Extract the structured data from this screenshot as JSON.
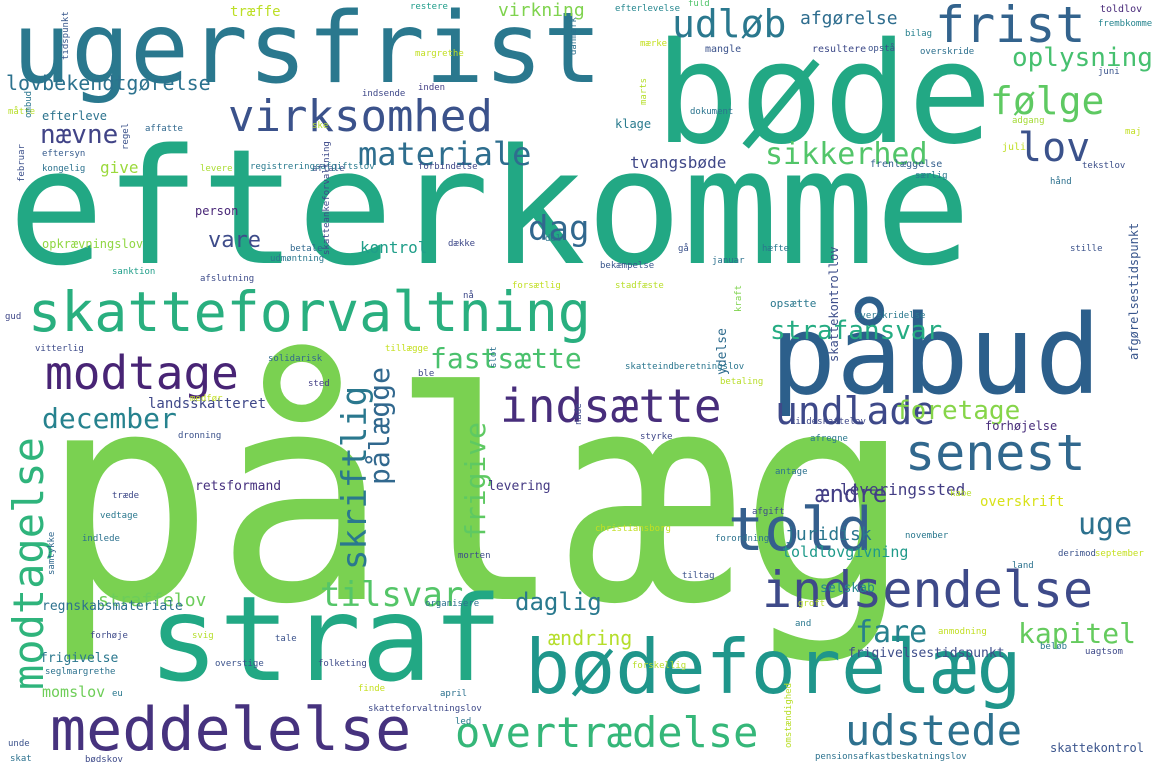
{
  "words": [
    {
      "text": "pålæg",
      "color": "#7ad151"
    },
    {
      "text": "efterkomme",
      "color": "#22a884"
    },
    {
      "text": "ugersfrist",
      "color": "#2a788e"
    },
    {
      "text": "bøde",
      "color": "#22a884"
    },
    {
      "text": "påbud",
      "color": "#2c5f8b"
    },
    {
      "text": "straf",
      "color": "#22a884"
    },
    {
      "text": "skatteforvaltning",
      "color": "#29af7f"
    },
    {
      "text": "bødeforelæg",
      "color": "#1f968b"
    },
    {
      "text": "meddelelse",
      "color": "#46327e"
    },
    {
      "text": "virksomhed",
      "color": "#3b528b"
    },
    {
      "text": "indsætte",
      "color": "#472d7b"
    },
    {
      "text": "modtage",
      "color": "#482475"
    },
    {
      "text": "indsendelse",
      "color": "#3e4a89"
    },
    {
      "text": "told",
      "color": "#355f8d"
    },
    {
      "text": "senest",
      "color": "#31688e"
    },
    {
      "text": "frist",
      "color": "#33638d"
    },
    {
      "text": "overtrædelse",
      "color": "#35b779"
    },
    {
      "text": "undlade",
      "color": "#3e4989"
    },
    {
      "text": "modtagelse",
      "color": "#2fb47c"
    },
    {
      "text": "udstede",
      "color": "#2d708e"
    },
    {
      "text": "udløb",
      "color": "#2a788e"
    },
    {
      "text": "følge",
      "color": "#5ec962"
    },
    {
      "text": "materiale",
      "color": "#2e6e8e"
    },
    {
      "text": "lov",
      "color": "#3b528b"
    },
    {
      "text": "sikkerhed",
      "color": "#52c569"
    },
    {
      "text": "tilsvar",
      "color": "#54c568"
    },
    {
      "text": "dag",
      "color": "#31688e"
    },
    {
      "text": "fastsætte",
      "color": "#4ac16d"
    },
    {
      "text": "december",
      "color": "#26828e"
    },
    {
      "text": "skriftlig",
      "color": "#2a788e"
    },
    {
      "text": "pålægge",
      "color": "#31688e"
    },
    {
      "text": "frigive",
      "color": "#5ec962"
    },
    {
      "text": "strafansvar",
      "color": "#25ac82"
    },
    {
      "text": "foretage",
      "color": "#86d549"
    },
    {
      "text": "kapitel",
      "color": "#65cb5e"
    },
    {
      "text": "fare",
      "color": "#27808e"
    },
    {
      "text": "uge",
      "color": "#2c718e"
    },
    {
      "text": "oplysning",
      "color": "#46c06f"
    },
    {
      "text": "nævne",
      "color": "#414487"
    },
    {
      "text": "vare",
      "color": "#3e4c8a"
    },
    {
      "text": "daglig",
      "color": "#29798e"
    },
    {
      "text": "ændre",
      "color": "#433e85"
    },
    {
      "text": "straffelov",
      "color": "#6ccd5a"
    },
    {
      "text": "ændring",
      "color": "#b5de2b"
    },
    {
      "text": "afgørelse",
      "color": "#2e6d8e"
    },
    {
      "text": "virkning",
      "color": "#7fd34e"
    },
    {
      "text": "træffe",
      "color": "#bddf26"
    },
    {
      "text": "lovbekendtgørelse",
      "color": "#2c728e"
    },
    {
      "text": "landsskatteret",
      "color": "#3f4889"
    },
    {
      "text": "kontrol",
      "color": "#1f9e89"
    },
    {
      "text": "tvangsbøde",
      "color": "#3f4788"
    },
    {
      "text": "leveringssted",
      "color": "#433d84"
    },
    {
      "text": "juridisk",
      "color": "#2a768e"
    },
    {
      "text": "selskab",
      "color": "#24878e"
    },
    {
      "text": "toldlovgivning",
      "color": "#1f9a8a"
    },
    {
      "text": "overskrift",
      "color": "#d8e219"
    },
    {
      "text": "forhøjelse",
      "color": "#472c7a"
    },
    {
      "text": "retsformand",
      "color": "#46307e"
    },
    {
      "text": "levering",
      "color": "#443983"
    },
    {
      "text": "opkrævningslov",
      "color": "#90d743"
    },
    {
      "text": "regnskabsmateriale",
      "color": "#2d718e"
    },
    {
      "text": "frigivelse",
      "color": "#2a778e"
    },
    {
      "text": "momslov",
      "color": "#6ece58"
    },
    {
      "text": "frigivelsestidspunkt",
      "color": "#3d4d8a"
    },
    {
      "text": "skattekontrol",
      "color": "#3a548c"
    },
    {
      "text": "give",
      "color": "#9bd93c"
    },
    {
      "text": "efterleve",
      "color": "#2c738e"
    },
    {
      "text": "klage",
      "color": "#2a7b8e"
    },
    {
      "text": "person",
      "color": "#482677"
    },
    {
      "text": "mangle",
      "color": "#3b528b"
    },
    {
      "text": "resultere",
      "color": "#3e4a89"
    },
    {
      "text": "opsætte",
      "color": "#2a788e"
    },
    {
      "text": "ydelse",
      "color": "#2f6c8e"
    },
    {
      "text": "skattekontrollov",
      "color": "#3d4e8a"
    },
    {
      "text": "afgørelsestidspunkt",
      "color": "#39568c"
    },
    {
      "text": "frembkomme",
      "color": "#25848e"
    },
    {
      "text": "toldlov",
      "color": "#482979"
    },
    {
      "text": "overskride",
      "color": "#2d708e"
    },
    {
      "text": "bilag",
      "color": "#27808e"
    },
    {
      "text": "opstå",
      "color": "#3b518b"
    },
    {
      "text": "dokument",
      "color": "#2b748e"
    },
    {
      "text": "margrethe",
      "color": "#c2df23"
    },
    {
      "text": "efterlevelse",
      "color": "#24868e"
    },
    {
      "text": "restere",
      "color": "#1e9c89"
    },
    {
      "text": "fuld",
      "color": "#50c46a"
    },
    {
      "text": "juni",
      "color": "#3a548c"
    },
    {
      "text": "adgang",
      "color": "#a5db36"
    },
    {
      "text": "særlig",
      "color": "#29798e"
    },
    {
      "text": "forbindelse",
      "color": "#3f4788"
    },
    {
      "text": "aftale",
      "color": "#3d4e8a"
    },
    {
      "text": "registreringsafgiftslov",
      "color": "#297a8e"
    },
    {
      "text": "frenlæggelse",
      "color": "#34608d"
    },
    {
      "text": "juli",
      "color": "#c0df25"
    },
    {
      "text": "hånd",
      "color": "#2d718e"
    },
    {
      "text": "tekstlov",
      "color": "#3c4f8a"
    },
    {
      "text": "måtte",
      "color": "#b8de29"
    },
    {
      "text": "februar",
      "color": "#3c508b"
    },
    {
      "text": "kongelig",
      "color": "#2c728e"
    },
    {
      "text": "eftersyn",
      "color": "#365c8d"
    },
    {
      "text": "affatte",
      "color": "#31688e"
    },
    {
      "text": "regel",
      "color": "#3b528b"
    },
    {
      "text": "levere",
      "color": "#aadc32"
    },
    {
      "text": "indsende",
      "color": "#3f4889"
    },
    {
      "text": "inden",
      "color": "#433e85"
    },
    {
      "text": "danmark",
      "color": "#2c718e"
    },
    {
      "text": "mærke",
      "color": "#c5e021"
    },
    {
      "text": "tidspunkt",
      "color": "#38588c"
    },
    {
      "text": "ombud",
      "color": "#2a768e"
    },
    {
      "text": "ske",
      "color": "#b5de2b"
    },
    {
      "text": "dække",
      "color": "#3e4989"
    },
    {
      "text": "del",
      "color": "#2c728e"
    },
    {
      "text": "betale",
      "color": "#31688e"
    },
    {
      "text": "hæfte",
      "color": "#2a788e"
    },
    {
      "text": "stille",
      "color": "#3b528b"
    },
    {
      "text": "skatteankeforvaltning",
      "color": "#3e4a89"
    },
    {
      "text": "bekæmpelse",
      "color": "#39568c"
    },
    {
      "text": "januar",
      "color": "#2c718e"
    },
    {
      "text": "sanktion",
      "color": "#1f9e89"
    },
    {
      "text": "udmøntning",
      "color": "#2a788e"
    },
    {
      "text": "afslutning",
      "color": "#3e4c8a"
    },
    {
      "text": "forsætlig",
      "color": "#c2df23"
    },
    {
      "text": "stadfæste",
      "color": "#b8de29"
    },
    {
      "text": "kraft",
      "color": "#7fd34e"
    },
    {
      "text": "overskridelse",
      "color": "#2a788e"
    },
    {
      "text": "nå",
      "color": "#3e4989"
    },
    {
      "text": "gå",
      "color": "#3b528b"
    },
    {
      "text": "gud",
      "color": "#3f4788"
    },
    {
      "text": "vitterlig",
      "color": "#3e4c8a"
    },
    {
      "text": "solidarisk",
      "color": "#31688e"
    },
    {
      "text": "tillægge",
      "color": "#c5e021"
    },
    {
      "text": "skatteindberetningslov",
      "color": "#2a768e"
    },
    {
      "text": "sted",
      "color": "#433e85"
    },
    {
      "text": "ble",
      "color": "#3e4989"
    },
    {
      "text": "slot",
      "color": "#2c728e"
    },
    {
      "text": "betaling",
      "color": "#b8de29"
    },
    {
      "text": "medfør",
      "color": "#c2df23"
    },
    {
      "text": "kildeskattelov",
      "color": "#3f4889"
    },
    {
      "text": "afregne",
      "color": "#2a788e"
    },
    {
      "text": "dronning",
      "color": "#3b528b"
    },
    {
      "text": "nåde",
      "color": "#3e4a89"
    },
    {
      "text": "styrke",
      "color": "#3f4788"
    },
    {
      "text": "antage",
      "color": "#2c718e"
    },
    {
      "text": "kabe",
      "color": "#b5de2b"
    },
    {
      "text": "november",
      "color": "#2a788e"
    },
    {
      "text": "afgift",
      "color": "#3e4c8a"
    },
    {
      "text": "christiansborg",
      "color": "#c2df23"
    },
    {
      "text": "forordning",
      "color": "#2c728e"
    },
    {
      "text": "derimod",
      "color": "#3b528b"
    },
    {
      "text": "september",
      "color": "#c5e021"
    },
    {
      "text": "træde",
      "color": "#3e4989"
    },
    {
      "text": "vedtage",
      "color": "#2a788e"
    },
    {
      "text": "indlede",
      "color": "#2c718e"
    },
    {
      "text": "samtykke",
      "color": "#31688e"
    },
    {
      "text": "morten",
      "color": "#3e4c8a"
    },
    {
      "text": "land",
      "color": "#2c728e"
    },
    {
      "text": "tiltag",
      "color": "#3b528b"
    },
    {
      "text": "and",
      "color": "#2a788e"
    },
    {
      "text": "groft",
      "color": "#b8de29"
    },
    {
      "text": "organisere",
      "color": "#2c718e"
    },
    {
      "text": "forhøje",
      "color": "#3e4a89"
    },
    {
      "text": "svig",
      "color": "#b5de2b"
    },
    {
      "text": "tale",
      "color": "#3b528b"
    },
    {
      "text": "anmodning",
      "color": "#c2df23"
    },
    {
      "text": "beløb",
      "color": "#2a788e"
    },
    {
      "text": "uagtsom",
      "color": "#3e4989"
    },
    {
      "text": "seglmargrethe",
      "color": "#2c728e"
    },
    {
      "text": "overstige",
      "color": "#3b528b"
    },
    {
      "text": "folketing",
      "color": "#3e4c8a"
    },
    {
      "text": "forskellig",
      "color": "#b8de29"
    },
    {
      "text": "eu",
      "color": "#2a788e"
    },
    {
      "text": "finde",
      "color": "#c5e021"
    },
    {
      "text": "april",
      "color": "#2c718e"
    },
    {
      "text": "skatteforvaltningslov",
      "color": "#3e4989"
    },
    {
      "text": "led",
      "color": "#2a788e"
    },
    {
      "text": "unde",
      "color": "#3b528b"
    },
    {
      "text": "skat",
      "color": "#2c718e"
    },
    {
      "text": "bødskov",
      "color": "#3e4a89"
    },
    {
      "text": "omstændighed",
      "color": "#b8de29"
    },
    {
      "text": "pensionsafkastbeskatningslov",
      "color": "#2c728e"
    },
    {
      "text": "maj",
      "color": "#c2df23"
    },
    {
      "text": "marts",
      "color": "#b5de2b"
    }
  ]
}
